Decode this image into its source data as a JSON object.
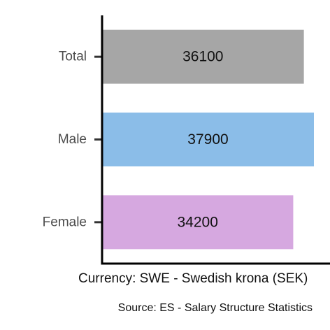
{
  "chart_data": {
    "type": "bar",
    "orientation": "horizontal",
    "categories": [
      "Total",
      "Male",
      "Female"
    ],
    "values": [
      36100,
      37900,
      34200
    ],
    "colors": [
      "#a6a6a6",
      "#8bbde8",
      "#d6a8e0"
    ],
    "xlabel": "Currency: SWE - Swedish krona (SEK)",
    "ylabel": "",
    "caption": "Source:  ES - Salary Structure Statistics",
    "xlim": [
      0,
      37900
    ],
    "grid": false,
    "legend": "none"
  }
}
